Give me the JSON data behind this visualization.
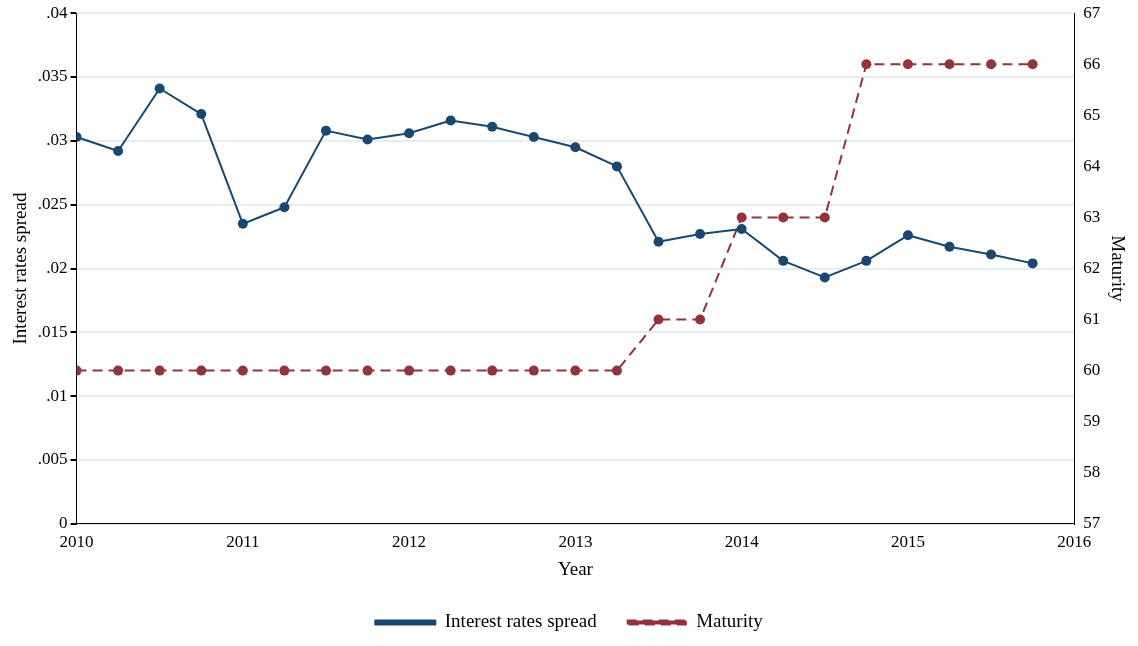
{
  "chart_data": {
    "type": "line",
    "xlabel": "Year",
    "ylabel": "Interest rates spread",
    "y2label": "Maturity",
    "x": [
      2010,
      2010.25,
      2010.5,
      2010.75,
      2011,
      2011.25,
      2011.5,
      2011.75,
      2012,
      2012.25,
      2012.5,
      2012.75,
      2013,
      2013.25,
      2013.5,
      2013.75,
      2014,
      2014.25,
      2014.5,
      2014.75,
      2015,
      2015.25,
      2015.5,
      2015.75
    ],
    "series": [
      {
        "name": "Interest rates spread",
        "color": "#1a476f",
        "line_style": "solid",
        "values": [
          0.0303,
          0.0292,
          0.0341,
          0.0321,
          0.0235,
          0.0248,
          0.0308,
          0.0301,
          0.0306,
          0.0316,
          0.0311,
          0.0303,
          0.0295,
          0.028,
          0.0221,
          0.0227,
          0.0231,
          0.0206,
          0.0193,
          0.0206,
          0.0226,
          0.0217,
          0.0211,
          0.0204
        ]
      },
      {
        "name": "Maturity",
        "color": "#90353b",
        "line_style": "dashed",
        "axis": "y2",
        "values": [
          60,
          60,
          60,
          60,
          60,
          60,
          60,
          60,
          60,
          60,
          60,
          60,
          60,
          60,
          61,
          61,
          63,
          63,
          63,
          66,
          66,
          66,
          66,
          66
        ]
      }
    ],
    "xlim": [
      2010,
      2016
    ],
    "xticks": [
      2010,
      2011,
      2012,
      2013,
      2014,
      2015,
      2016
    ],
    "ylim": [
      0,
      0.04
    ],
    "yticks": [
      {
        "value": 0,
        "label": "0"
      },
      {
        "value": 0.005,
        "label": ".005"
      },
      {
        "value": 0.01,
        "label": ".01"
      },
      {
        "value": 0.015,
        "label": ".015"
      },
      {
        "value": 0.02,
        "label": ".02"
      },
      {
        "value": 0.025,
        "label": ".025"
      },
      {
        "value": 0.03,
        "label": ".03"
      },
      {
        "value": 0.035,
        "label": ".035"
      },
      {
        "value": 0.04,
        "label": ".04"
      }
    ],
    "y2lim": [
      57,
      67
    ],
    "y2ticks": [
      57,
      58,
      59,
      60,
      61,
      62,
      63,
      64,
      65,
      66,
      67
    ],
    "grid": "y",
    "legend": "bottom",
    "marker": "circle"
  }
}
